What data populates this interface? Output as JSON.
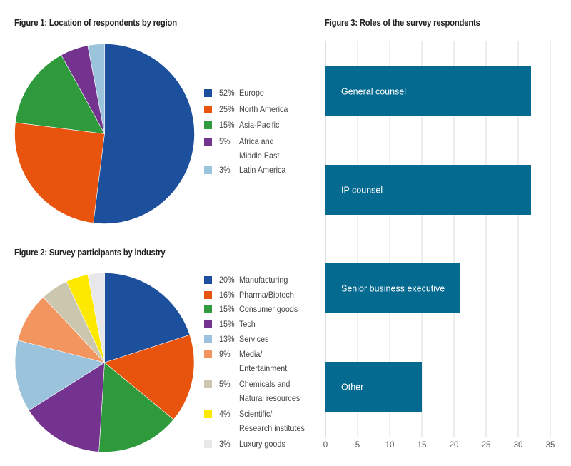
{
  "chart_data": [
    {
      "type": "pie",
      "title": "Figure 1: Location of respondents by region",
      "legend_position": "right",
      "slices": [
        {
          "label": "Europe",
          "pct_label": "52%",
          "value": 52,
          "color": "#1c4f9c"
        },
        {
          "label": "North America",
          "pct_label": "25%",
          "value": 25,
          "color": "#e8530e"
        },
        {
          "label": "Asia-Pacific",
          "pct_label": "15%",
          "value": 15,
          "color": "#2e9a3c"
        },
        {
          "label": "Africa and\nMiddle East",
          "pct_label": "5%",
          "value": 5,
          "color": "#73338f"
        },
        {
          "label": "Latin America",
          "pct_label": "3%",
          "value": 3,
          "color": "#9cc3dc"
        }
      ]
    },
    {
      "type": "pie",
      "title": "Figure 2: Survey participants by industry",
      "legend_position": "right",
      "slices": [
        {
          "label": "Manufacturing",
          "pct_label": "20%",
          "value": 20,
          "color": "#1c4f9c"
        },
        {
          "label": "Pharma/Biotech",
          "pct_label": "16%",
          "value": 16,
          "color": "#e8530e"
        },
        {
          "label": "Consumer goods",
          "pct_label": "15%",
          "value": 15,
          "color": "#2e9a3c"
        },
        {
          "label": "Tech",
          "pct_label": "15%",
          "value": 15,
          "color": "#73338f"
        },
        {
          "label": "Services",
          "pct_label": "13%",
          "value": 13,
          "color": "#9cc3dc"
        },
        {
          "label": "Media/\nEntertainment",
          "pct_label": "9%",
          "value": 9,
          "color": "#f2955f"
        },
        {
          "label": "Chemicals and\nNatural resources",
          "pct_label": "5%",
          "value": 5,
          "color": "#cbc6ae"
        },
        {
          "label": "Scientific/\nResearch institutes",
          "pct_label": "4%",
          "value": 4,
          "color": "#fde800"
        },
        {
          "label": "Luxury goods",
          "pct_label": "3%",
          "value": 3,
          "color": "#e8e8ea"
        }
      ]
    },
    {
      "type": "bar",
      "orientation": "horizontal",
      "title": "Figure 3: Roles of the survey respondents",
      "categories": [
        "General counsel",
        "IP counsel",
        "Senior business executive",
        "Other"
      ],
      "values": [
        32,
        32,
        21,
        15
      ],
      "bar_color": "#046a90",
      "xlim": [
        0,
        35
      ],
      "xticks": [
        "0",
        "5",
        "10",
        "15",
        "20",
        "25",
        "30",
        "35"
      ],
      "xtick_values": [
        0,
        5,
        10,
        15,
        20,
        25,
        30,
        35
      ],
      "grid": "vertical",
      "labels_inside_bars": true
    }
  ]
}
